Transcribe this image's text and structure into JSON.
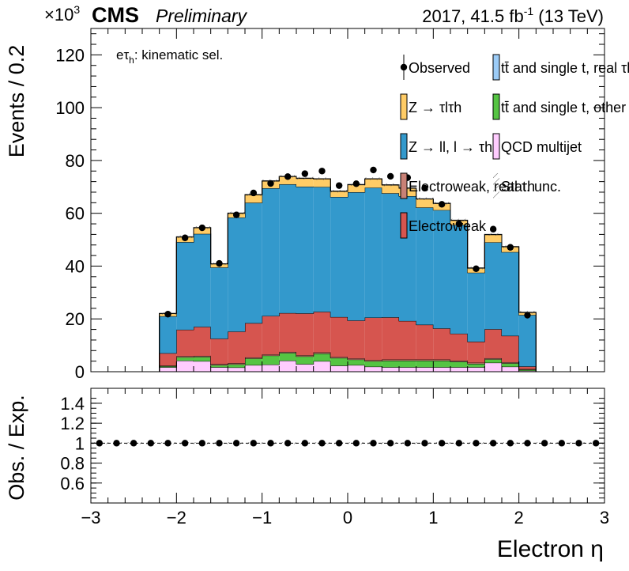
{
  "header": {
    "exponent_base": "×10",
    "exponent_power": "3",
    "experiment": "CMS",
    "status": "Preliminary",
    "lumi_prefix": "2017, 41.5 fb",
    "lumi_power": "-1",
    "lumi_suffix": " (13 TeV)",
    "channel_label": "eτ",
    "channel_sub": "h",
    "channel_suffix": ": kinematic sel."
  },
  "chart_data": [
    {
      "type": "bar",
      "stacked": true,
      "title": "",
      "ylabel": "Events / 0.2",
      "y_scale_factor": "×10^3",
      "xlim": [
        -3,
        3
      ],
      "ylim": [
        0,
        130
      ],
      "y_ticks": [
        0,
        20,
        40,
        60,
        80,
        100,
        120
      ],
      "bin_edges": [
        -2.2,
        -2.0,
        -1.8,
        -1.6,
        -1.4,
        -1.2,
        -1.0,
        -0.8,
        -0.6,
        -0.4,
        -0.2,
        0.0,
        0.2,
        0.4,
        0.6,
        0.8,
        1.0,
        1.2,
        1.4,
        1.6,
        1.8,
        2.0,
        2.2
      ],
      "series": [
        {
          "name": "QCD multijet",
          "color": "#ffccff",
          "values": [
            1.7,
            4.2,
            4.0,
            1.7,
            1.6,
            2.5,
            2.7,
            4.2,
            2.9,
            4.0,
            2.3,
            2.5,
            1.9,
            1.7,
            1.7,
            1.7,
            1.7,
            1.7,
            1.7,
            3.4,
            1.9,
            0.4
          ]
        },
        {
          "name": "tt̄ and single t, other",
          "color": "#55c443",
          "values": [
            0.4,
            1.3,
            1.6,
            0.8,
            1.2,
            2.5,
            3.4,
            2.9,
            2.9,
            2.9,
            2.9,
            2.1,
            2.1,
            2.5,
            2.5,
            2.5,
            2.5,
            2.1,
            1.3,
            1.3,
            1.3,
            0.4
          ]
        },
        {
          "name": "Electroweak, real τh",
          "color": "#c98176",
          "values": [
            0.2,
            0.4,
            0.4,
            0.4,
            0.4,
            0.4,
            0.4,
            0.4,
            0.4,
            0.4,
            0.4,
            0.4,
            0.4,
            0.4,
            0.4,
            0.4,
            0.4,
            0.4,
            0.4,
            0.4,
            0.4,
            0.2
          ]
        },
        {
          "name": "Electroweak",
          "color": "#d6554f",
          "values": [
            4.7,
            10.0,
            11.0,
            9.6,
            12.0,
            13.0,
            14.6,
            14.7,
            15.9,
            15.4,
            15.1,
            14.4,
            16.1,
            16.0,
            14.6,
            13.2,
            11.8,
            10.2,
            8.0,
            11.0,
            10.0,
            1.0
          ]
        },
        {
          "name": "Z → ll, l → τh",
          "color": "#3399cc",
          "values": [
            14.0,
            33.2,
            35.2,
            27.0,
            43.2,
            45.6,
            48.4,
            48.8,
            48.0,
            47.3,
            45.5,
            48.6,
            49.2,
            47.0,
            47.3,
            44.4,
            44.8,
            41.2,
            26.1,
            32.9,
            31.7,
            19.5
          ]
        },
        {
          "name": "Z → τlτh",
          "color": "#ffcc66",
          "values": [
            1.0,
            1.9,
            2.3,
            1.3,
            1.6,
            3.0,
            2.7,
            2.9,
            3.1,
            3.0,
            2.1,
            2.8,
            3.3,
            3.1,
            3.0,
            3.2,
            2.5,
            1.7,
            1.7,
            2.9,
            2.0,
            0.9
          ]
        },
        {
          "name": "tt̄ and single t, real τh",
          "color": "#9cccf7",
          "values": [
            0.1,
            0.1,
            0.1,
            0.1,
            0.1,
            0.1,
            0.1,
            0.1,
            0.1,
            0.1,
            0.1,
            0.1,
            0.1,
            0.1,
            0.1,
            0.1,
            0.1,
            0.1,
            0.1,
            0.1,
            0.1,
            0.1
          ]
        }
      ],
      "observed": {
        "name": "Observed",
        "x": [
          -2.1,
          -1.9,
          -1.7,
          -1.5,
          -1.3,
          -1.1,
          -0.9,
          -0.7,
          -0.5,
          -0.3,
          -0.1,
          0.1,
          0.3,
          0.5,
          0.7,
          0.9,
          1.1,
          1.3,
          1.5,
          1.7,
          1.9,
          2.1
        ],
        "y": [
          21.8,
          50.7,
          54.5,
          41.0,
          59.4,
          67.7,
          71.3,
          73.9,
          75.0,
          76.0,
          70.5,
          71.2,
          76.4,
          74.0,
          73.5,
          69.5,
          63.4,
          56.0,
          39.0,
          54.0,
          47.1,
          21.4
        ]
      },
      "uncertainty": {
        "name": "Stat. unc.",
        "style": "hatched"
      },
      "legend": [
        {
          "label": "Observed",
          "style": "marker"
        },
        {
          "label": "tt̄ and single t, real τh",
          "color": "#9cccf7"
        },
        {
          "label": "Z → τlτh",
          "color": "#ffcc66"
        },
        {
          "label": "tt̄ and single t, other",
          "color": "#55c443"
        },
        {
          "label": "Z → ll, l → τh",
          "color": "#3399cc"
        },
        {
          "label": "QCD multijet",
          "color": "#ffccff"
        },
        {
          "label": "Electroweak, real τh",
          "color": "#c98176"
        },
        {
          "label": "Stat. unc.",
          "style": "hatched"
        },
        {
          "label": "Electroweak",
          "color": "#d6554f"
        }
      ],
      "legend_placement": "top-right"
    },
    {
      "type": "scatter",
      "title": "",
      "ylabel": "Obs. / Exp.",
      "xlabel": "Electron η",
      "xlim": [
        -3,
        3
      ],
      "ylim": [
        0.4,
        1.55
      ],
      "y_ticks": [
        0.6,
        0.8,
        1,
        1.2,
        1.4
      ],
      "x_ticks": [
        -3,
        -2,
        -1,
        0,
        1,
        2,
        3
      ],
      "reference_line": 1,
      "x": [
        -2.9,
        -2.7,
        -2.5,
        -2.3,
        -2.1,
        -1.9,
        -1.7,
        -1.5,
        -1.3,
        -1.1,
        -0.9,
        -0.7,
        -0.5,
        -0.3,
        -0.1,
        0.1,
        0.3,
        0.5,
        0.7,
        0.9,
        1.1,
        1.3,
        1.5,
        1.7,
        1.9,
        2.1,
        2.3,
        2.5,
        2.7,
        2.9
      ],
      "y": [
        1,
        1,
        1,
        1,
        1,
        1,
        1,
        1,
        1,
        1,
        1,
        1,
        1,
        1,
        1,
        1,
        1,
        1,
        1,
        1,
        1,
        1,
        1,
        1,
        1,
        1,
        1,
        1,
        1,
        1
      ]
    }
  ]
}
